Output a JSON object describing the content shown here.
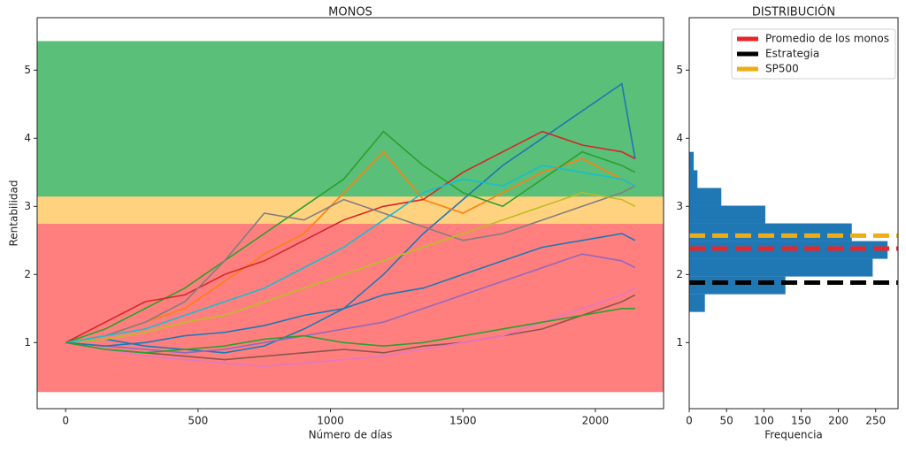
{
  "chart_data": [
    {
      "type": "line",
      "title": "MONOS",
      "xlabel": "Número de días",
      "ylabel": "Rentabilidad",
      "xlim": [
        -107.5,
        2257.5
      ],
      "ylim": [
        0.03,
        5.77
      ],
      "xticks": [
        0,
        500,
        1000,
        1500,
        2000
      ],
      "yticks": [
        1,
        2,
        3,
        4,
        5
      ],
      "bands": [
        {
          "from": 0.28,
          "to": 2.75,
          "color": "#ff7f7f"
        },
        {
          "from": 2.75,
          "to": 3.15,
          "color": "#ffd27f"
        },
        {
          "from": 3.15,
          "to": 5.42,
          "color": "#5abf78"
        }
      ],
      "x": [
        0,
        150,
        300,
        450,
        600,
        750,
        900,
        1050,
        1200,
        1350,
        1500,
        1650,
        1800,
        1950,
        2100,
        2150
      ],
      "series": [
        {
          "color": "#1f77b4",
          "values": [
            1,
            1.05,
            0.95,
            0.9,
            0.85,
            0.95,
            1.2,
            1.5,
            2.0,
            2.6,
            3.1,
            3.6,
            4.0,
            4.4,
            4.8,
            3.7
          ]
        },
        {
          "color": "#ff7f0e",
          "values": [
            1,
            1.1,
            1.3,
            1.5,
            1.9,
            2.3,
            2.6,
            3.2,
            3.8,
            3.1,
            2.9,
            3.2,
            3.5,
            3.7,
            3.4,
            3.3
          ]
        },
        {
          "color": "#2ca02c",
          "values": [
            1,
            1.2,
            1.5,
            1.8,
            2.2,
            2.6,
            3.0,
            3.4,
            4.1,
            3.6,
            3.2,
            3.0,
            3.4,
            3.8,
            3.6,
            3.5
          ]
        },
        {
          "color": "#d62728",
          "values": [
            1,
            1.3,
            1.6,
            1.7,
            2.0,
            2.2,
            2.5,
            2.8,
            3.0,
            3.1,
            3.5,
            3.8,
            4.1,
            3.9,
            3.8,
            3.7
          ]
        },
        {
          "color": "#9467bd",
          "values": [
            1,
            0.95,
            0.9,
            0.85,
            0.9,
            1.0,
            1.1,
            1.2,
            1.3,
            1.5,
            1.7,
            1.9,
            2.1,
            2.3,
            2.2,
            2.1
          ]
        },
        {
          "color": "#8c564b",
          "values": [
            1,
            0.9,
            0.85,
            0.8,
            0.75,
            0.8,
            0.85,
            0.9,
            0.85,
            0.95,
            1.0,
            1.1,
            1.2,
            1.4,
            1.6,
            1.7
          ]
        },
        {
          "color": "#e377c2",
          "values": [
            1,
            0.9,
            0.8,
            0.75,
            0.7,
            0.65,
            0.7,
            0.75,
            0.8,
            0.9,
            1.0,
            1.1,
            1.3,
            1.5,
            1.7,
            1.8
          ]
        },
        {
          "color": "#7f7f7f",
          "values": [
            1,
            1.1,
            1.3,
            1.6,
            2.2,
            2.9,
            2.8,
            3.1,
            2.9,
            2.7,
            2.5,
            2.6,
            2.8,
            3.0,
            3.2,
            3.3
          ]
        },
        {
          "color": "#bcbd22",
          "values": [
            1,
            1.05,
            1.15,
            1.3,
            1.4,
            1.6,
            1.8,
            2.0,
            2.2,
            2.4,
            2.6,
            2.8,
            3.0,
            3.2,
            3.1,
            3.0
          ]
        },
        {
          "color": "#17becf",
          "values": [
            1,
            1.1,
            1.2,
            1.4,
            1.6,
            1.8,
            2.1,
            2.4,
            2.8,
            3.2,
            3.4,
            3.3,
            3.6,
            3.5,
            3.4,
            3.3
          ]
        },
        {
          "color": "#1f77b4",
          "values": [
            1,
            0.95,
            1.0,
            1.1,
            1.15,
            1.25,
            1.4,
            1.5,
            1.7,
            1.8,
            2.0,
            2.2,
            2.4,
            2.5,
            2.6,
            2.5
          ]
        },
        {
          "color": "#2ca02c",
          "values": [
            1,
            0.9,
            0.85,
            0.9,
            0.95,
            1.05,
            1.1,
            1.0,
            0.95,
            1.0,
            1.1,
            1.2,
            1.3,
            1.4,
            1.5,
            1.5
          ]
        }
      ]
    },
    {
      "type": "histogram",
      "orientation": "horizontal",
      "title": "DISTRIBUCIÓN",
      "xlabel": "Frequencia",
      "xlim": [
        0,
        280
      ],
      "ylim": [
        0.03,
        5.77
      ],
      "xticks": [
        0,
        50,
        100,
        150,
        200,
        250
      ],
      "yticks": [
        1,
        2,
        3,
        4,
        5
      ],
      "color": "#1f77b4",
      "bins": [
        1.45,
        1.71,
        1.97,
        2.23,
        2.49,
        2.75,
        3.01,
        3.27,
        3.53,
        3.8
      ],
      "counts": [
        21,
        129,
        246,
        266,
        218,
        102,
        43,
        11,
        6
      ],
      "lines": [
        {
          "name": "Promedio de los monos",
          "value": 2.38,
          "color": "#e8262a"
        },
        {
          "name": "Estrategia",
          "value": 1.88,
          "color": "#000000"
        },
        {
          "name": "SP500",
          "value": 2.57,
          "color": "#eeac17"
        }
      ],
      "legend": "upper right"
    }
  ]
}
